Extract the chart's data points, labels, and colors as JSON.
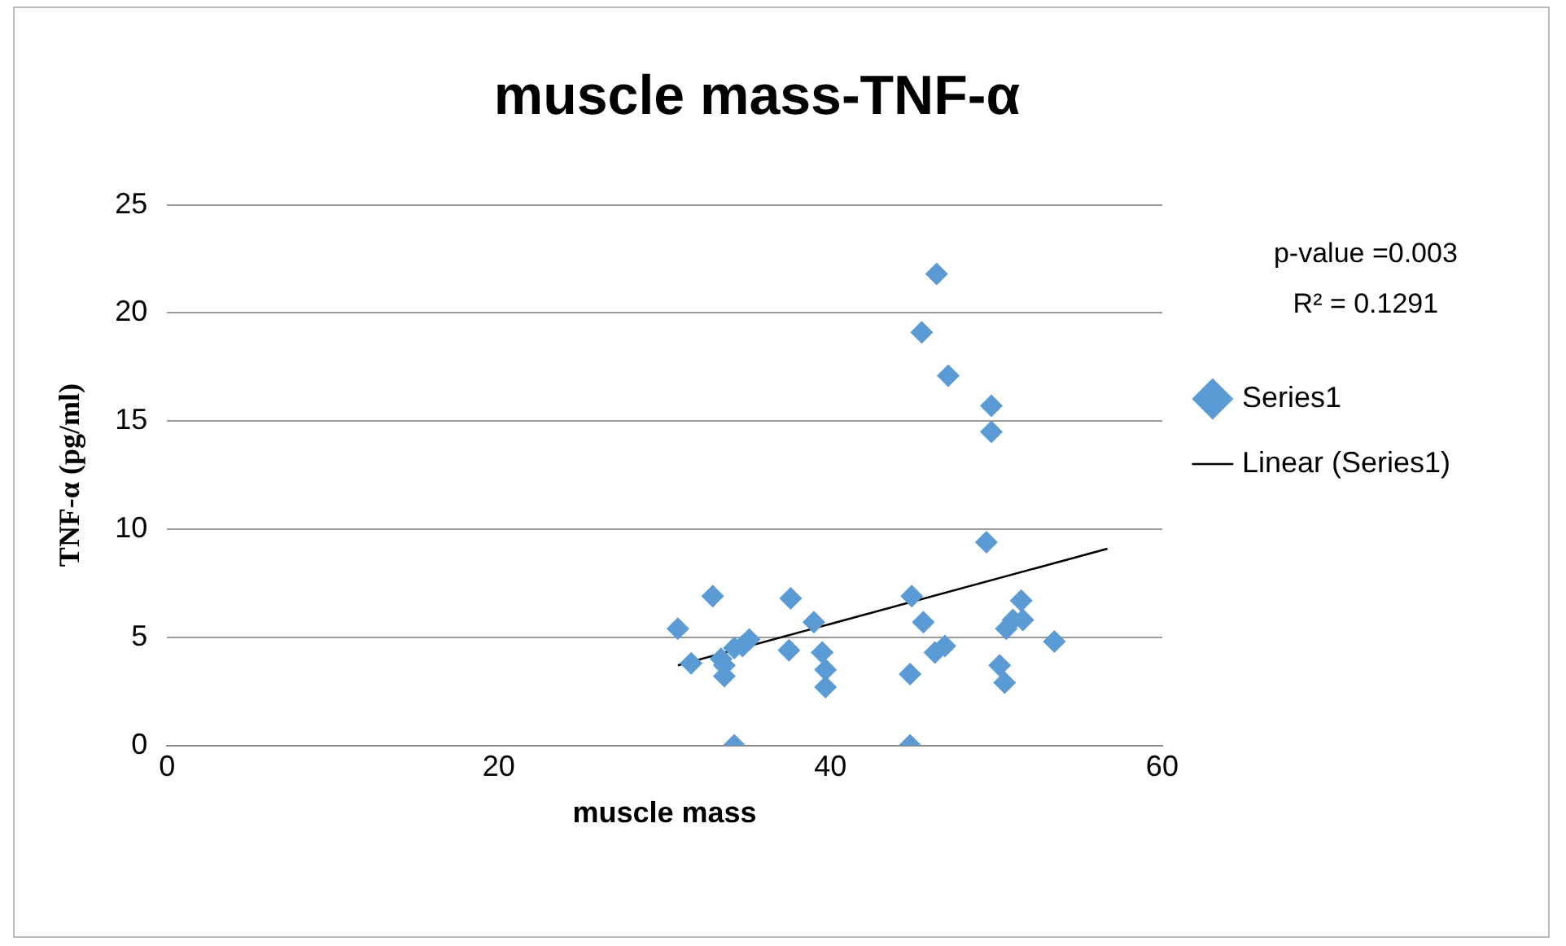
{
  "chart_data": {
    "type": "scatter",
    "title": "muscle mass-TNF-α",
    "xlabel": "muscle mass",
    "ylabel": "TNF-α (pg/ml)",
    "xlim": [
      0,
      60
    ],
    "xticks": [
      0,
      20,
      40,
      60
    ],
    "ylim": [
      0,
      25
    ],
    "yticks": [
      0,
      5,
      10,
      15,
      20,
      25
    ],
    "grid": "y",
    "legend": "right",
    "marker": "diamond",
    "annotations": [
      "p-value =0.003",
      "R² = 0.1291"
    ],
    "series": [
      {
        "name": "Series1",
        "color": "#5b9bd5",
        "x": [
          30.8,
          31.6,
          32.9,
          33.4,
          33.6,
          34.2,
          34.2,
          34.7,
          35.1,
          33.6,
          37.6,
          37.5,
          39.0,
          39.5,
          39.7,
          39.7,
          44.8,
          44.8,
          44.9,
          45.6,
          46.3,
          46.9,
          45.5,
          46.4,
          47.1,
          49.7,
          49.7,
          49.4,
          50.2,
          50.5,
          50.6,
          51.0,
          51.5,
          51.6,
          53.5
        ],
        "values": [
          5.4,
          3.8,
          6.9,
          4.0,
          3.2,
          0,
          4.5,
          4.6,
          4.9,
          3.7,
          6.8,
          4.4,
          5.7,
          4.3,
          3.5,
          2.7,
          0,
          3.3,
          6.9,
          5.7,
          4.3,
          4.6,
          19.1,
          21.8,
          17.1,
          15.7,
          14.5,
          9.4,
          3.7,
          2.9,
          5.4,
          5.8,
          6.7,
          5.8,
          4.8
        ]
      },
      {
        "name": "Linear (Series1)",
        "type": "line",
        "color": "#000000",
        "marker": "none",
        "x": [
          30.8,
          56.7
        ],
        "values": [
          3.7,
          9.1
        ]
      }
    ]
  }
}
